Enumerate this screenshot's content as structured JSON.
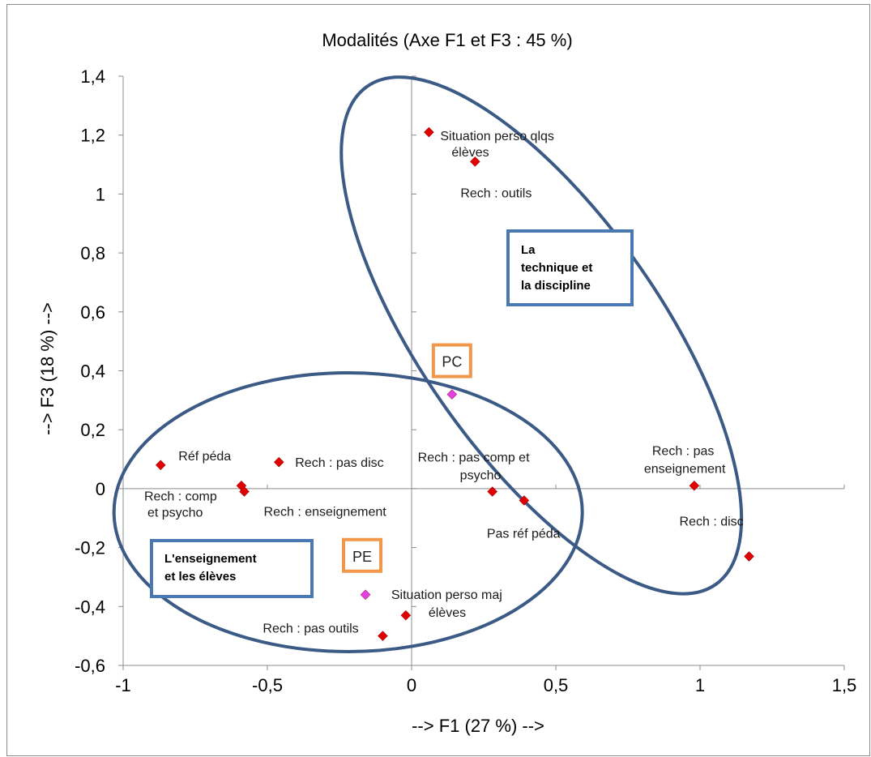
{
  "chart_data": {
    "type": "scatter",
    "title": "Modalités (Axe F1 et F3 : 45 %)",
    "xlabel": "--> F1 (27 %) -->",
    "ylabel": "--> F3 (18 %) -->",
    "xlim": [
      -1,
      1.5
    ],
    "ylim": [
      -0.6,
      1.4
    ],
    "x_ticks": [
      "-1",
      "-0,5",
      "0",
      "0,5",
      "1",
      "1,5"
    ],
    "y_ticks": [
      "1,4",
      "1,2",
      "1",
      "0,8",
      "0,6",
      "0,4",
      "0,2",
      "0",
      "-0,2",
      "-0,4",
      "-0,6"
    ],
    "grid": false,
    "points": [
      {
        "label": "Situation perso qlqs élèves",
        "x": 0.06,
        "y": 1.21,
        "color": "#e00000"
      },
      {
        "label": "Rech : outils",
        "x": 0.22,
        "y": 1.11,
        "color": "#e00000"
      },
      {
        "label": "Réf péda",
        "x": -0.87,
        "y": 0.08,
        "color": "#e00000"
      },
      {
        "label": "Rech : pas disc",
        "x": -0.46,
        "y": 0.09,
        "color": "#e00000"
      },
      {
        "label": "Rech : comp et psycho",
        "x": -0.59,
        "y": 0.01,
        "color": "#e00000"
      },
      {
        "label": "Rech : enseignement",
        "x": -0.58,
        "y": -0.01,
        "color": "#e00000"
      },
      {
        "label": "Rech : pas comp et psycho",
        "x": 0.28,
        "y": -0.01,
        "color": "#e00000"
      },
      {
        "label": "Pas réf péda",
        "x": 0.39,
        "y": -0.04,
        "color": "#e00000"
      },
      {
        "label": "Rech : pas enseignement",
        "x": 0.98,
        "y": 0.01,
        "color": "#e00000"
      },
      {
        "label": "Rech : disc",
        "x": 1.17,
        "y": -0.23,
        "color": "#e00000"
      },
      {
        "label": "Situation perso maj élèves",
        "x": -0.02,
        "y": -0.43,
        "color": "#e00000"
      },
      {
        "label": "Rech : pas outils",
        "x": -0.1,
        "y": -0.5,
        "color": "#e00000"
      },
      {
        "label": "PC",
        "x": 0.14,
        "y": 0.32,
        "color": "#e43fe4"
      },
      {
        "label": "PE",
        "x": -0.16,
        "y": -0.36,
        "color": "#e43fe4"
      }
    ],
    "annotations": [
      {
        "text": "La technique et la discipline",
        "lines": [
          "La",
          "technique et",
          "la discipline"
        ]
      },
      {
        "text": "L'enseignement et les élèves",
        "lines": [
          "L'enseignement",
          "et les élèves"
        ]
      }
    ],
    "colors": {
      "marker": "#e00000",
      "supplementary": "#e43fe4",
      "ellipse": "#3b5a86",
      "box": "#4a78b0",
      "tag": "#f0974a"
    }
  }
}
